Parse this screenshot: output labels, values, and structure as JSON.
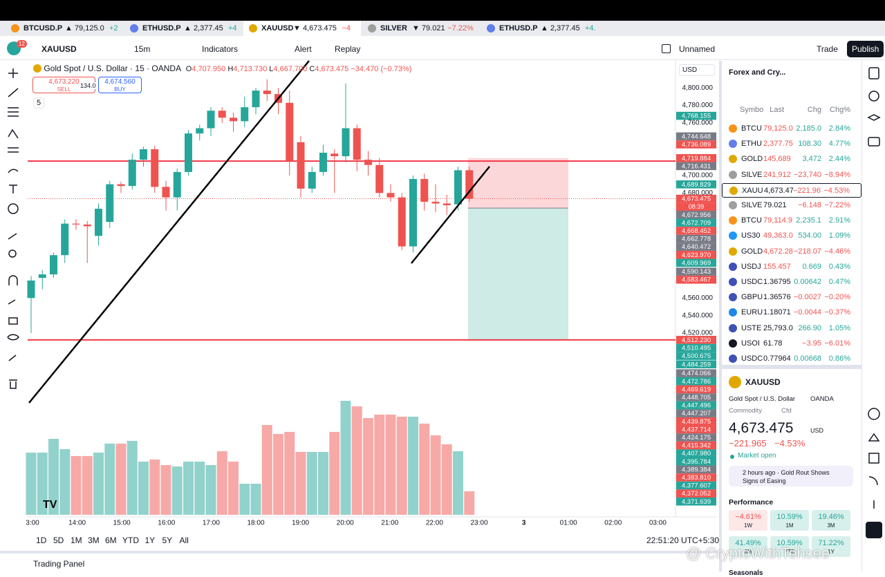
{
  "tabs": [
    {
      "name": "BTCUSD.P",
      "price": "▲ 79,125.0",
      "change": "+2"
    },
    {
      "name": "ETHUSD.P",
      "price": "▲ 2,377.45",
      "change": "+4"
    },
    {
      "name": "XAUUSD",
      "price": "▼ 4,673.475",
      "change": "−4"
    },
    {
      "name": "SILVER",
      "price": "▼ 79.021",
      "change": "−7.22%"
    },
    {
      "name": "ETHUSD.P",
      "price": "▲ 2,377.45",
      "change": "+4."
    }
  ],
  "active_tab": 2,
  "toolbar": {
    "symbol": "XAUUSD",
    "interval": "15m",
    "indicators": "Indicators",
    "alert": "Alert",
    "replay": "Replay",
    "layout": "Unnamed",
    "trade": "Trade",
    "publish": "Publish",
    "badge": "12"
  },
  "legend": {
    "title": "Gold Spot / U.S. Dollar · 15 · OANDA",
    "o": "O",
    "open": "4,707.950",
    "h": "H",
    "high": "4,713.730",
    "l": "L",
    "low": "4,667.700",
    "c": "C",
    "close": "4,673.475",
    "change": "−34.470 (−0.73%)",
    "sell_price": "4,673.220",
    "sell": "SELL",
    "spread": "134.0",
    "buy_price": "4,674.560",
    "buy": "BUY",
    "indicator_count": "5",
    "currency": "USD"
  },
  "chart": {
    "ylim": [
      4310,
      4831
    ],
    "yticks": [
      {
        "value": 4800,
        "label": "4,800.000"
      },
      {
        "value": 4780,
        "label": "4,780.000"
      },
      {
        "value": 4760,
        "label": "4,760.000"
      },
      {
        "value": 4700,
        "label": "4,700.000"
      },
      {
        "value": 4680,
        "label": "4,680.000"
      },
      {
        "value": 4560,
        "label": "4,560.000"
      },
      {
        "value": 4540,
        "label": "4,540.000"
      },
      {
        "value": 4520,
        "label": "4,520.000"
      }
    ],
    "candles": [
      [
        4560,
        4585,
        4520,
        4580
      ],
      [
        4583,
        4592,
        4570,
        4587
      ],
      [
        4587,
        4612,
        4583,
        4609
      ],
      [
        4609,
        4650,
        4600,
        4645
      ],
      [
        4645,
        4650,
        4638,
        4644
      ],
      [
        4644,
        4648,
        4600,
        4642
      ],
      [
        4631,
        4668,
        4620,
        4662
      ],
      [
        4647,
        4694,
        4640,
        4690
      ],
      [
        4690,
        4693,
        4680,
        4688
      ],
      [
        4688,
        4725,
        4684,
        4718
      ],
      [
        4718,
        4733,
        4710,
        4730
      ],
      [
        4730,
        4734,
        4680,
        4687
      ],
      [
        4687,
        4694,
        4660,
        4675
      ],
      [
        4675,
        4708,
        4660,
        4704
      ],
      [
        4704,
        4752,
        4700,
        4748
      ],
      [
        4748,
        4758,
        4740,
        4754
      ],
      [
        4754,
        4778,
        4745,
        4774
      ],
      [
        4774,
        4778,
        4760,
        4766
      ],
      [
        4766,
        4772,
        4750,
        4762
      ],
      [
        4762,
        4790,
        4755,
        4778
      ],
      [
        4778,
        4800,
        4770,
        4797
      ],
      [
        4797,
        4810,
        4785,
        4793
      ],
      [
        4793,
        4800,
        4770,
        4783
      ],
      [
        4783,
        4797,
        4700,
        4717
      ],
      [
        4738,
        4745,
        4675,
        4685
      ],
      [
        4685,
        4710,
        4680,
        4704
      ],
      [
        4704,
        4735,
        4700,
        4726
      ],
      [
        4725,
        4730,
        4680,
        4722
      ],
      [
        4722,
        4805,
        4715,
        4754
      ],
      [
        4754,
        4758,
        4705,
        4718
      ],
      [
        4718,
        4728,
        4700,
        4712
      ],
      [
        4712,
        4720,
        4675,
        4680
      ],
      [
        4680,
        4690,
        4670,
        4675
      ],
      [
        4675,
        4680,
        4615,
        4619
      ],
      [
        4619,
        4700,
        4612,
        4696
      ],
      [
        4696,
        4702,
        4660,
        4670
      ],
      [
        4670,
        4690,
        4658,
        4668
      ],
      [
        4668,
        4678,
        4655,
        4666
      ],
      [
        4667,
        4710,
        4660,
        4706
      ],
      [
        4706,
        4710,
        4670,
        4673.475
      ]
    ],
    "volume": [
      90,
      90,
      110,
      95,
      85,
      85,
      90,
      103,
      103,
      107,
      77,
      80,
      72,
      70,
      77,
      77,
      72,
      92,
      77,
      45,
      45,
      130,
      117,
      120,
      91,
      91,
      91,
      120,
      165,
      157,
      140,
      145,
      145,
      142,
      142,
      132,
      115,
      102,
      92,
      34
    ],
    "up_color": "#26a69a",
    "down_color": "#ef5350",
    "position": {
      "stop": 4719.884,
      "entry": 4662.778,
      "target": 4512.23
    },
    "levels": [
      4716.431,
      4512.23
    ],
    "last_price": 4673.475,
    "countdown": "08:39",
    "tags": [
      {
        "value": 4768.155,
        "label": "4,768.155",
        "color": "#26a69a"
      },
      {
        "value": 4744.648,
        "label": "4,744.648",
        "color": "#787b86"
      },
      {
        "value": 4736.089,
        "label": "4,736.089",
        "color": "#ef5350"
      },
      {
        "value": 4719.884,
        "label": "4,719.884",
        "color": "#ef5350"
      },
      {
        "value": 4716.431,
        "label": "4,716.431",
        "color": "#787b86"
      },
      {
        "value": 4689.829,
        "label": "4,689.829",
        "color": "#26a69a"
      },
      {
        "value": 4673.475,
        "label": "4,673.475",
        "color": "#ef5350"
      },
      {
        "value": 4672.956,
        "label": "4,672.956",
        "color": "#787b86"
      },
      {
        "value": 4672.709,
        "label": "4,672.709",
        "color": "#26a69a"
      },
      {
        "value": 4668.452,
        "label": "4,668.452",
        "color": "#ef5350"
      },
      {
        "value": 4662.778,
        "label": "4,662.778",
        "color": "#787b86"
      },
      {
        "value": 4640.472,
        "label": "4,640.472",
        "color": "#787b86"
      },
      {
        "value": 4623.97,
        "label": "4,623.970",
        "color": "#ef5350"
      },
      {
        "value": 4609.969,
        "label": "4,609.969",
        "color": "#26a69a"
      },
      {
        "value": 4590.143,
        "label": "4,590.143",
        "color": "#787b86"
      },
      {
        "value": 4583.467,
        "label": "4,583.467",
        "color": "#ef5350"
      },
      {
        "value": 4512.23,
        "label": "4,512.230",
        "color": "#ef5350"
      },
      {
        "value": 4510.495,
        "label": "4,510.495",
        "color": "#26a69a"
      },
      {
        "value": 4500.675,
        "label": "4,500.675",
        "color": "#26a69a"
      },
      {
        "value": 4484.259,
        "label": "4,484.259",
        "color": "#26a69a"
      },
      {
        "value": 4474.066,
        "label": "4,474.066",
        "color": "#787b86"
      },
      {
        "value": 4472.786,
        "label": "4,472.786",
        "color": "#26a69a"
      },
      {
        "value": 4469.619,
        "label": "4,469.619",
        "color": "#ef5350"
      },
      {
        "value": 4448.705,
        "label": "4,448.705",
        "color": "#787b86"
      },
      {
        "value": 4447.496,
        "label": "4,447.496",
        "color": "#26a69a"
      },
      {
        "value": 4447.207,
        "label": "4,447.207",
        "color": "#787b86"
      },
      {
        "value": 4439.875,
        "label": "4,439.875",
        "color": "#ef5350"
      },
      {
        "value": 4437.714,
        "label": "4,437.714",
        "color": "#ef5350"
      },
      {
        "value": 4424.175,
        "label": "4,424.175",
        "color": "#787b86"
      },
      {
        "value": 4415.342,
        "label": "4,415.342",
        "color": "#ef5350"
      },
      {
        "value": 4407.98,
        "label": "4,407.980",
        "color": "#26a69a"
      },
      {
        "value": 4395.784,
        "label": "4,395.784",
        "color": "#26a69a"
      },
      {
        "value": 4389.384,
        "label": "4,389.384",
        "color": "#787b86"
      },
      {
        "value": 4383.81,
        "label": "4,383.810",
        "color": "#ef5350"
      },
      {
        "value": 4377.607,
        "label": "4,377.607",
        "color": "#26a69a"
      },
      {
        "value": 4372.052,
        "label": "4,372.052",
        "color": "#ef5350"
      },
      {
        "value": 4371.639,
        "label": "4,371.639",
        "color": "#26a69a"
      }
    ],
    "time_labels": [
      "3:00",
      "14:00",
      "15:00",
      "16:00",
      "17:00",
      "18:00",
      "19:00",
      "20:00",
      "21:00",
      "22:00",
      "23:00",
      "3",
      "01:00",
      "02:00",
      "03:00"
    ]
  },
  "ranges": [
    "1D",
    "5D",
    "1M",
    "3M",
    "6M",
    "YTD",
    "1Y",
    "5Y",
    "All"
  ],
  "clock": "22:51:20 UTC+5:30",
  "trading_panel": "Trading Panel",
  "watchlist": {
    "title": "Forex and Cry...",
    "columns": [
      "Symbo",
      "Last",
      "Chg",
      "Chg%"
    ],
    "selected": 4,
    "rows": [
      [
        "BTCU",
        "79,125.0",
        "2,185.0",
        "2.84%",
        "#f7931a",
        "#ef5350"
      ],
      [
        "ETHU",
        "2,377.75",
        "108.30",
        "4.77%",
        "#627eea",
        "#ef5350"
      ],
      [
        "GOLD",
        "145,689",
        "3,472",
        "2.44%",
        "#e0a800",
        "#ef5350"
      ],
      [
        "SILVE",
        "241,912",
        "−23,740",
        "−8.94%",
        "#9e9e9e",
        "#ef5350"
      ],
      [
        "XAUU",
        "4,673.47",
        "−221.96",
        "−4.53%",
        "#e0a800",
        "#131722"
      ],
      [
        "SILVE",
        "79.021",
        "−6.148",
        "−7.22%",
        "#9e9e9e",
        "#131722"
      ],
      [
        "BTCU",
        "79,114.9",
        "2,235.1",
        "2.91%",
        "#f7931a",
        "#ef5350"
      ],
      [
        "US30",
        "49,363.0",
        "534.00",
        "1.09%",
        "#2196f3",
        "#ef5350"
      ],
      [
        "GOLD",
        "4,672.28",
        "−218.07",
        "−4.46%",
        "#e0a800",
        "#ef5350"
      ],
      [
        "USDJ",
        "155.457",
        "0.669",
        "0.43%",
        "#3f51b5",
        "#ef5350"
      ],
      [
        "USDC",
        "1.36795",
        "0.00642",
        "0.47%",
        "#3f51b5",
        "#131722"
      ],
      [
        "GBPU",
        "1.36576",
        "−0.0027",
        "−0.20%",
        "#3f51b5",
        "#131722"
      ],
      [
        "EURU",
        "1.18071",
        "−0.0044",
        "−0.37%",
        "#1e88e5",
        "#131722"
      ],
      [
        "USTE",
        "25,793.0",
        "266.90",
        "1.05%",
        "#3f51b5",
        "#131722"
      ],
      [
        "USOI",
        "61.78",
        "−3.95",
        "−6.01%",
        "#131722",
        "#131722"
      ],
      [
        "USDC",
        "0.77964",
        "0.00668",
        "0.86%",
        "#3f51b5",
        "#131722"
      ]
    ]
  },
  "details": {
    "symbol": "XAUUSD",
    "name": "Gold Spot / U.S. Dollar",
    "exchange": "OANDA",
    "category": "Commodity",
    "kind": "Cfd",
    "price": "4,673.475",
    "currency": "USD",
    "change": "−221.965",
    "change_pct": "−4.53%",
    "status": "Market open",
    "news": "2 hours ago · Gold Rout Shows Signs of Easing",
    "performance_title": "Performance",
    "performance": [
      [
        "−4.61%",
        "1W"
      ],
      [
        "10.59%",
        "1M"
      ],
      [
        "19.46%",
        "3M"
      ],
      [
        "41.49%",
        "6M"
      ],
      [
        "10.59%",
        "YTD"
      ],
      [
        "71.22%",
        "1Y"
      ]
    ],
    "seasonals": "Seasonals"
  },
  "watermark": "@ CryptoWithTehsee"
}
